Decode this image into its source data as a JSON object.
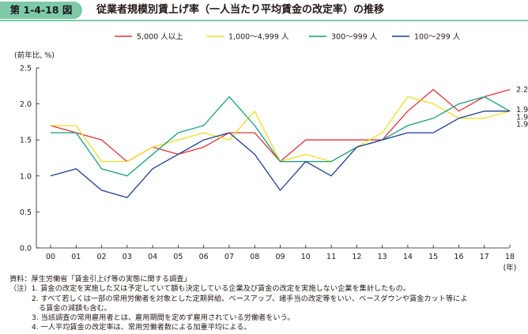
{
  "header": {
    "figure_number": "第 1-4-18 図",
    "title": "従業者規模別賃上げ率（一人当たり平均賃金の改定率）の推移"
  },
  "chart_data": {
    "type": "line",
    "title": "従業者規模別賃上げ率（一人当たり平均賃金の改定率）の推移",
    "ylabel": "(前年比, %)",
    "xlabel": "(年)",
    "categories": [
      "00",
      "01",
      "02",
      "03",
      "04",
      "05",
      "06",
      "07",
      "08",
      "09",
      "10",
      "11",
      "12",
      "13",
      "14",
      "15",
      "16",
      "17",
      "18"
    ],
    "ylim": [
      0,
      2.5
    ],
    "yticks": [
      "0.0",
      "0.5",
      "1.0",
      "1.5",
      "2.0",
      "2.5"
    ],
    "grid": false,
    "legend_position": "top",
    "series": [
      {
        "name": "5,000 人以上",
        "color": "#e2343a",
        "values": [
          1.7,
          1.6,
          1.5,
          1.2,
          1.4,
          1.3,
          1.4,
          1.6,
          1.6,
          1.2,
          1.5,
          1.5,
          1.5,
          1.5,
          1.9,
          2.2,
          1.9,
          2.1,
          2.2
        ]
      },
      {
        "name": "1,000～4,999 人",
        "color": "#f1de24",
        "values": [
          1.7,
          1.7,
          1.2,
          1.2,
          1.4,
          1.5,
          1.6,
          1.5,
          1.9,
          1.2,
          1.3,
          1.2,
          1.4,
          1.6,
          2.1,
          2.0,
          1.8,
          1.8,
          1.9
        ]
      },
      {
        "name": "300～999 人",
        "color": "#14a07c",
        "values": [
          1.6,
          1.6,
          1.1,
          1.0,
          1.3,
          1.6,
          1.7,
          2.1,
          1.7,
          1.2,
          1.2,
          1.2,
          1.4,
          1.5,
          1.7,
          1.8,
          2.0,
          2.1,
          1.9
        ]
      },
      {
        "name": "100～299 人",
        "color": "#1f3f8f",
        "values": [
          1.0,
          1.1,
          0.8,
          0.7,
          1.1,
          1.3,
          1.5,
          1.6,
          1.3,
          0.8,
          1.2,
          1.0,
          1.4,
          1.5,
          1.6,
          1.6,
          1.8,
          1.9,
          1.9
        ]
      }
    ],
    "end_labels": [
      "2.2",
      "1.9",
      "1.9",
      "1.9"
    ]
  },
  "notes": {
    "source_label": "資料：",
    "source": "厚生労働省「賃金引上げ等の実態に関する調査」",
    "note_label": "（注）",
    "items": [
      "1. 賃金の改定を実施した又は予定していて額も決定している企業及び賃金の改定を実施しない企業を集計したもの。",
      "2. すべて若しくは一部の常用労働者を対象とした定期昇給、ベースアップ、諸手当の改定等をいい、ベースダウンや賃金カット等による賃金の減額も含む。",
      "3. 当該調査の常用雇用者とは、雇用期間を定めず雇用されている労働者をいう。",
      "4. 一人平均賃金の改定率は、常用労働者数による加重平均による。"
    ],
    "item2_line1": "2. すべて若しくは一部の常用労働者を対象とした定期昇給、ベースアップ、諸手当の改定等をいい、ベースダウンや賃金カット等によ",
    "item2_line2": "る賃金の減額も含む。"
  }
}
